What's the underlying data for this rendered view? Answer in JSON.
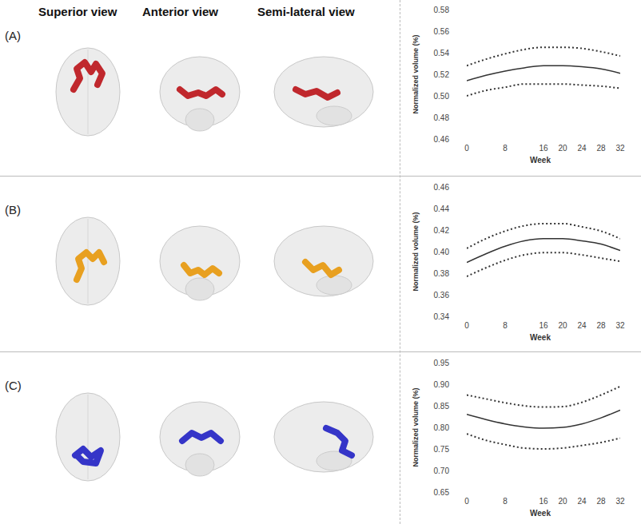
{
  "headers": [
    "Superior view",
    "Anterior view",
    "Semi-lateral view"
  ],
  "panels": [
    {
      "label": "(A)",
      "color": "#c0282d"
    },
    {
      "label": "(B)",
      "color": "#e8a020"
    },
    {
      "label": "(C)",
      "color": "#3535c8"
    }
  ],
  "chart_data": [
    {
      "type": "line",
      "x_label": "Week",
      "y_label": "Normalized volume (%)",
      "x": [
        0,
        4,
        8,
        12,
        16,
        20,
        24,
        28,
        32
      ],
      "xlim": [
        0,
        32
      ],
      "xticks": [
        0,
        8,
        16,
        20,
        24,
        28,
        32
      ],
      "ylim": [
        0.46,
        0.58
      ],
      "yticks": [
        0.46,
        0.48,
        {
          "value": 0.5,
          "label": "0.50"
        },
        0.52,
        0.54,
        0.56,
        0.58
      ],
      "grid": false,
      "series": [
        {
          "color": "#333333",
          "line_style": "dotted",
          "values": [
            0.528,
            0.534,
            0.539,
            0.543,
            0.545,
            0.545,
            0.544,
            0.541,
            0.537
          ]
        },
        {
          "color": "#333333",
          "line_style": "solid",
          "values": [
            0.514,
            0.519,
            0.523,
            0.526,
            0.528,
            0.528,
            0.527,
            0.525,
            0.521
          ]
        },
        {
          "color": "#333333",
          "line_style": "dotted",
          "values": [
            0.5,
            0.505,
            0.508,
            0.511,
            0.511,
            0.511,
            0.51,
            0.509,
            0.507
          ]
        }
      ]
    },
    {
      "type": "line",
      "x_label": "Week",
      "y_label": "Normalized volume (%)",
      "x": [
        0,
        4,
        8,
        12,
        16,
        20,
        24,
        28,
        32
      ],
      "xlim": [
        0,
        32
      ],
      "xticks": [
        0,
        8,
        16,
        20,
        24,
        28,
        32
      ],
      "ylim": [
        0.34,
        0.46
      ],
      "yticks": [
        0.34,
        0.36,
        0.38,
        {
          "value": 0.4,
          "label": "0.40"
        },
        0.42,
        0.44,
        0.46
      ],
      "grid": false,
      "series": [
        {
          "color": "#333333",
          "line_style": "dotted",
          "values": [
            0.403,
            0.412,
            0.419,
            0.424,
            0.426,
            0.426,
            0.423,
            0.419,
            0.412
          ]
        },
        {
          "color": "#333333",
          "line_style": "solid",
          "values": [
            0.39,
            0.398,
            0.405,
            0.41,
            0.412,
            0.412,
            0.41,
            0.407,
            0.401
          ]
        },
        {
          "color": "#333333",
          "line_style": "dotted",
          "values": [
            0.377,
            0.385,
            0.392,
            0.397,
            0.399,
            0.399,
            0.397,
            0.394,
            0.391
          ]
        }
      ]
    },
    {
      "type": "line",
      "x_label": "Week",
      "y_label": "Normalized volume (%)",
      "x": [
        0,
        4,
        8,
        12,
        16,
        20,
        24,
        28,
        32
      ],
      "xlim": [
        0,
        32
      ],
      "xticks": [
        0,
        8,
        16,
        20,
        24,
        28,
        32
      ],
      "ylim": [
        0.65,
        0.95
      ],
      "yticks": [
        0.65,
        {
          "value": 0.7,
          "label": "0.70"
        },
        0.75,
        {
          "value": 0.8,
          "label": "0.80"
        },
        0.85,
        {
          "value": 0.9,
          "label": "0.90"
        },
        0.95
      ],
      "grid": false,
      "series": [
        {
          "color": "#333333",
          "line_style": "dotted",
          "values": [
            0.875,
            0.866,
            0.857,
            0.85,
            0.847,
            0.848,
            0.858,
            0.875,
            0.895
          ]
        },
        {
          "color": "#333333",
          "line_style": "solid",
          "values": [
            0.83,
            0.818,
            0.808,
            0.801,
            0.798,
            0.8,
            0.808,
            0.822,
            0.84
          ]
        },
        {
          "color": "#333333",
          "line_style": "dotted",
          "values": [
            0.785,
            0.77,
            0.76,
            0.752,
            0.75,
            0.752,
            0.758,
            0.765,
            0.775
          ]
        }
      ]
    }
  ]
}
